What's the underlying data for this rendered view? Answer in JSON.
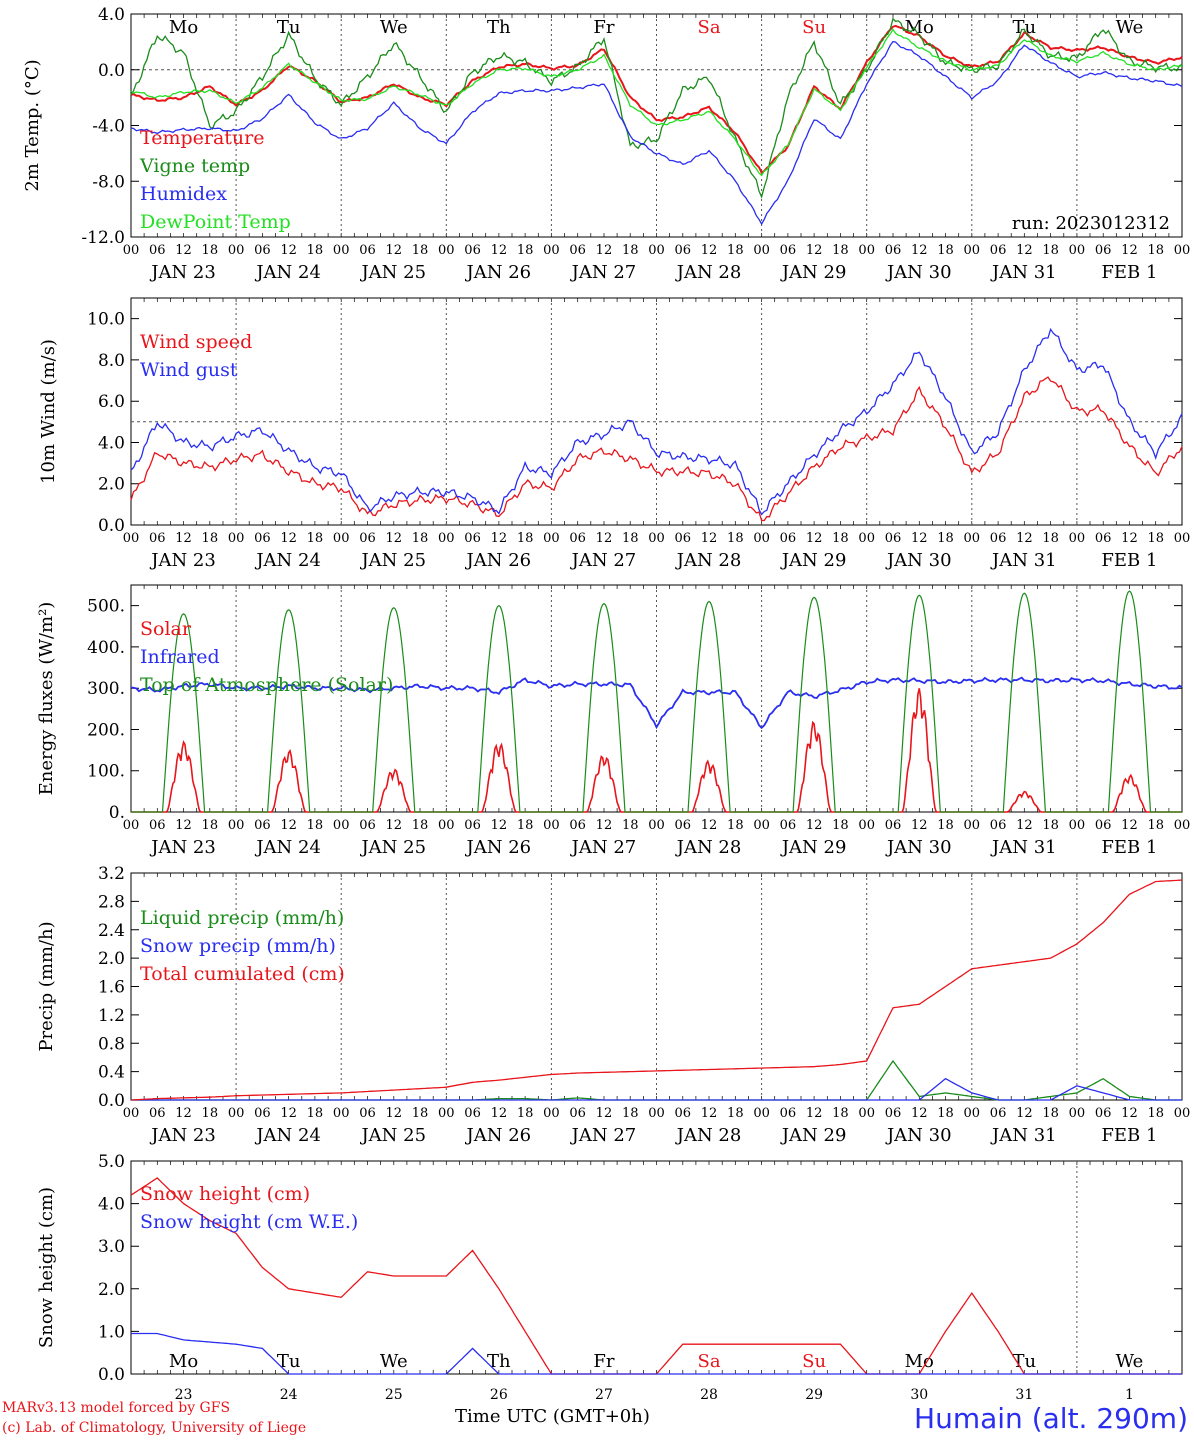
{
  "footer": {
    "model": "MARv3.13 model forced by GFS",
    "credit": "(c) Lab. of Climatology, University of Liege",
    "x_label": "Time UTC (GMT+0h)",
    "station": "Humain (alt. 290m)"
  },
  "colors": {
    "red": "#e8151b",
    "blue": "#2a2ef0",
    "green": "#1a8c1a",
    "lightgreen": "#22e022",
    "grid": "#555555"
  },
  "x_ticks": {
    "hour_labels": [
      "00",
      "06",
      "12",
      "18"
    ],
    "date_labels": [
      "JAN 23",
      "JAN 24",
      "JAN 25",
      "JAN 26",
      "JAN 27",
      "JAN 28",
      "JAN 29",
      "JAN 30",
      "JAN 31",
      "FEB  1"
    ]
  },
  "chart_data": [
    {
      "type": "line",
      "ylabel": "2m Temp. (°C)",
      "ylim": [
        -12,
        4
      ],
      "yticks": [
        "4.0",
        "0.0",
        "-4.0",
        "-8.0",
        "-12.0"
      ],
      "reference_line": 0,
      "day_labels": [
        {
          "text": "Mo",
          "color": "black"
        },
        {
          "text": "Tu",
          "color": "black"
        },
        {
          "text": "We",
          "color": "black"
        },
        {
          "text": "Th",
          "color": "black"
        },
        {
          "text": "Fr",
          "color": "black"
        },
        {
          "text": "Sa",
          "color": "red"
        },
        {
          "text": "Su",
          "color": "red"
        },
        {
          "text": "Mo",
          "color": "black"
        },
        {
          "text": "Tu",
          "color": "black"
        },
        {
          "text": "We",
          "color": "black"
        }
      ],
      "annotation": "run: 2023012312",
      "x_days": [
        0,
        0.25,
        0.5,
        0.75,
        1,
        1.25,
        1.5,
        1.75,
        2,
        2.25,
        2.5,
        2.75,
        3,
        3.25,
        3.5,
        3.75,
        4,
        4.25,
        4.5,
        4.75,
        5,
        5.25,
        5.5,
        5.75,
        6,
        6.25,
        6.5,
        6.75,
        7,
        7.25,
        7.5,
        7.75,
        8,
        8.25,
        8.5,
        8.75,
        9,
        9.25,
        9.5,
        9.75,
        10
      ],
      "series": [
        {
          "name": "Temperature",
          "color": "red",
          "values": [
            -1.8,
            -2.2,
            -2.0,
            -1.2,
            -2.5,
            -1.5,
            0.3,
            -0.8,
            -2.3,
            -2.0,
            -1.0,
            -2.0,
            -2.5,
            -0.8,
            0.2,
            0.4,
            0.1,
            0.3,
            1.5,
            -2.0,
            -3.6,
            -3.4,
            -2.7,
            -4.5,
            -7.4,
            -5.5,
            -1.2,
            -2.8,
            0.5,
            3.2,
            2.4,
            1.0,
            0.2,
            0.6,
            2.6,
            1.6,
            1.4,
            1.6,
            0.9,
            0.5,
            0.9
          ]
        },
        {
          "name": "Vigne temp",
          "color": "green",
          "values": [
            -2.0,
            2.5,
            1.2,
            -4.0,
            -3.0,
            -0.5,
            2.5,
            -0.6,
            -2.5,
            -0.5,
            1.9,
            -0.5,
            -3.0,
            -0.2,
            1.0,
            0.5,
            -0.8,
            0.2,
            2.3,
            -5.5,
            -5.0,
            -1.5,
            -0.5,
            -5.0,
            -9.0,
            -2.0,
            2.0,
            -2.5,
            0.0,
            3.5,
            2.5,
            0.5,
            0.0,
            0.3,
            2.8,
            1.0,
            0.8,
            3.0,
            0.6,
            0.2,
            0.1
          ]
        },
        {
          "name": "Humidex",
          "color": "blue",
          "values": [
            -4.2,
            -4.5,
            -4.3,
            -4.2,
            -4.4,
            -3.5,
            -1.8,
            -3.8,
            -5.0,
            -4.2,
            -2.4,
            -4.2,
            -5.3,
            -3.0,
            -1.7,
            -1.5,
            -1.5,
            -1.3,
            -1.0,
            -4.8,
            -6.0,
            -6.8,
            -5.8,
            -8.0,
            -11.0,
            -8.0,
            -3.5,
            -5.0,
            -1.0,
            2.0,
            1.0,
            -0.5,
            -2.0,
            -0.8,
            1.8,
            0.5,
            -0.5,
            -0.2,
            -0.6,
            -0.8,
            -1.2
          ]
        },
        {
          "name": "DewPoint Temp",
          "color": "lightgreen",
          "values": [
            -1.5,
            -2.0,
            -1.6,
            -1.5,
            -2.4,
            -1.3,
            0.4,
            -0.9,
            -2.2,
            -2.1,
            -1.2,
            -1.8,
            -2.6,
            -1.0,
            0.0,
            0.1,
            -0.5,
            0.0,
            1.0,
            -2.5,
            -4.0,
            -3.6,
            -3.0,
            -5.0,
            -7.6,
            -5.4,
            -1.4,
            -2.9,
            0.2,
            2.8,
            1.6,
            0.6,
            0.0,
            0.3,
            2.2,
            1.0,
            0.6,
            1.2,
            0.4,
            0.0,
            0.3
          ]
        }
      ]
    },
    {
      "type": "line",
      "ylabel": "10m Wind (m/s)",
      "ylim": [
        0,
        11
      ],
      "yticks": [
        "10.0",
        "8.0",
        "6.0",
        "4.0",
        "2.0",
        "0.0"
      ],
      "reference_line": 5,
      "x_days": [
        0,
        0.25,
        0.5,
        0.75,
        1,
        1.25,
        1.5,
        1.75,
        2,
        2.25,
        2.5,
        2.75,
        3,
        3.25,
        3.5,
        3.75,
        4,
        4.25,
        4.5,
        4.75,
        5,
        5.25,
        5.5,
        5.75,
        6,
        6.25,
        6.5,
        6.75,
        7,
        7.25,
        7.5,
        7.75,
        8,
        8.25,
        8.5,
        8.75,
        9,
        9.25,
        9.5,
        9.75,
        10
      ],
      "series": [
        {
          "name": "Wind speed",
          "color": "red",
          "values": [
            1.2,
            3.5,
            3.0,
            2.8,
            3.2,
            3.4,
            2.6,
            2.0,
            1.8,
            0.5,
            1.0,
            1.2,
            1.3,
            1.0,
            0.5,
            2.0,
            1.8,
            3.2,
            3.6,
            3.2,
            2.6,
            2.6,
            2.5,
            2.0,
            0.2,
            1.5,
            2.8,
            3.8,
            4.2,
            4.6,
            6.5,
            4.8,
            2.5,
            3.5,
            6.2,
            7.2,
            5.5,
            5.6,
            3.8,
            2.5,
            3.8
          ]
        },
        {
          "name": "Wind gust",
          "color": "blue",
          "values": [
            2.5,
            5.0,
            4.0,
            3.8,
            4.3,
            4.6,
            3.6,
            2.8,
            2.5,
            0.8,
            1.4,
            1.6,
            1.6,
            1.3,
            0.7,
            2.8,
            2.5,
            4.0,
            4.4,
            5.0,
            3.5,
            3.3,
            3.2,
            2.9,
            0.6,
            2.0,
            3.4,
            4.6,
            5.5,
            6.8,
            8.4,
            6.2,
            3.5,
            4.5,
            7.5,
            9.5,
            7.5,
            7.8,
            5.0,
            3.5,
            5.2
          ]
        }
      ]
    },
    {
      "type": "line",
      "ylabel": "Energy fluxes (W/m²)",
      "ylim": [
        0,
        550
      ],
      "yticks": [
        "500.",
        "400.",
        "300.",
        "200.",
        "100.",
        "0."
      ],
      "series": [
        {
          "name": "Solar",
          "color": "red",
          "peaks": [
            170,
            150,
            105,
            170,
            140,
            125,
            220,
            300,
            50,
            90
          ]
        },
        {
          "name": "Infrared",
          "color": "blue",
          "values": [
            300,
            295,
            305,
            310,
            300,
            300,
            305,
            300,
            300,
            295,
            300,
            305,
            300,
            300,
            290,
            320,
            305,
            310,
            310,
            308,
            210,
            290,
            290,
            290,
            205,
            290,
            280,
            295,
            315,
            320,
            318,
            315,
            318,
            320,
            320,
            318,
            320,
            318,
            310,
            305,
            300
          ]
        },
        {
          "name": "Top of Atmosphere (Solar)",
          "color": "green",
          "peaks": [
            480,
            490,
            495,
            500,
            505,
            510,
            520,
            525,
            530,
            535
          ]
        }
      ]
    },
    {
      "type": "line",
      "ylabel": "Precip (mm/h)",
      "ylim": [
        0,
        3.2
      ],
      "yticks": [
        "3.2",
        "2.8",
        "2.4",
        "2.0",
        "1.6",
        "1.2",
        "0.8",
        "0.4",
        "0.0"
      ],
      "x_days": [
        0,
        0.25,
        0.5,
        0.75,
        1,
        1.25,
        1.5,
        1.75,
        2,
        2.25,
        2.5,
        2.75,
        3,
        3.25,
        3.5,
        3.75,
        4,
        4.25,
        4.5,
        4.75,
        5,
        5.25,
        5.5,
        5.75,
        6,
        6.25,
        6.5,
        6.75,
        7,
        7.25,
        7.5,
        7.75,
        8,
        8.25,
        8.5,
        8.75,
        9,
        9.25,
        9.5,
        9.75,
        10
      ],
      "series": [
        {
          "name": "Liquid precip (mm/h)",
          "color": "green",
          "values": [
            0,
            0,
            0,
            0,
            0,
            0,
            0,
            0,
            0,
            0,
            0,
            0,
            0,
            0,
            0.02,
            0.02,
            0,
            0.03,
            0,
            0,
            0,
            0,
            0,
            0,
            0,
            0,
            0,
            0,
            0,
            0.55,
            0.05,
            0.1,
            0.05,
            0,
            0,
            0.05,
            0.1,
            0.3,
            0.05,
            0,
            0
          ]
        },
        {
          "name": "Snow precip (mm/h)",
          "color": "blue",
          "values": [
            0,
            0,
            0,
            0,
            0,
            0,
            0,
            0,
            0,
            0,
            0,
            0,
            0,
            0,
            0,
            0,
            0,
            0,
            0,
            0,
            0,
            0,
            0,
            0,
            0,
            0,
            0,
            0,
            0,
            0,
            0,
            0.3,
            0.1,
            0,
            0,
            0,
            0.2,
            0.1,
            0,
            0,
            0
          ]
        },
        {
          "name": "Total cumulated (cm)",
          "color": "red",
          "values": [
            0,
            0.02,
            0.03,
            0.04,
            0.06,
            0.07,
            0.08,
            0.09,
            0.1,
            0.12,
            0.14,
            0.16,
            0.18,
            0.25,
            0.28,
            0.32,
            0.36,
            0.38,
            0.39,
            0.4,
            0.41,
            0.42,
            0.43,
            0.44,
            0.45,
            0.46,
            0.47,
            0.5,
            0.55,
            1.3,
            1.35,
            1.6,
            1.85,
            1.9,
            1.95,
            2.0,
            2.2,
            2.5,
            2.9,
            3.08,
            3.1
          ]
        }
      ]
    },
    {
      "type": "line",
      "ylabel": "Snow height (cm)",
      "ylim": [
        0,
        5
      ],
      "yticks": [
        "5.0",
        "4.0",
        "3.0",
        "2.0",
        "1.0",
        "0.0"
      ],
      "x_ticks": [
        "23",
        "24",
        "25",
        "26",
        "27",
        "28",
        "29",
        "30",
        "31",
        "1"
      ],
      "day_labels": [
        {
          "text": "Mo",
          "color": "black"
        },
        {
          "text": "Tu",
          "color": "black"
        },
        {
          "text": "We",
          "color": "black"
        },
        {
          "text": "Th",
          "color": "black"
        },
        {
          "text": "Fr",
          "color": "black"
        },
        {
          "text": "Sa",
          "color": "red"
        },
        {
          "text": "Su",
          "color": "red"
        },
        {
          "text": "Mo",
          "color": "black"
        },
        {
          "text": "Tu",
          "color": "black"
        },
        {
          "text": "We",
          "color": "black"
        }
      ],
      "x_days": [
        0,
        0.25,
        0.5,
        0.75,
        1,
        1.25,
        1.5,
        1.75,
        2,
        2.25,
        2.5,
        2.75,
        3,
        3.25,
        3.5,
        3.75,
        4,
        4.25,
        4.5,
        4.75,
        5,
        5.25,
        5.5,
        5.75,
        6,
        6.25,
        6.5,
        6.75,
        7,
        7.25,
        7.5,
        7.75,
        8,
        8.25,
        8.5,
        8.75,
        9,
        9.25,
        9.5,
        9.75,
        10
      ],
      "series": [
        {
          "name": "Snow height (cm)",
          "color": "red",
          "values": [
            4.2,
            4.6,
            4.0,
            3.6,
            3.3,
            2.5,
            2.0,
            1.9,
            1.8,
            2.4,
            2.3,
            2.3,
            2.3,
            2.9,
            2.0,
            1.0,
            0,
            0,
            0,
            0,
            0,
            0.7,
            0.7,
            0.7,
            0.7,
            0.7,
            0.7,
            0.7,
            0,
            0,
            0,
            1.0,
            1.9,
            1.0,
            0,
            0,
            0,
            0,
            0,
            0,
            0
          ]
        },
        {
          "name": "Snow height (cm W.E.)",
          "color": "blue",
          "values": [
            0.95,
            0.95,
            0.8,
            0.75,
            0.7,
            0.6,
            0,
            0,
            0,
            0,
            0,
            0,
            0,
            0.6,
            0,
            0,
            0,
            0,
            0,
            0,
            0,
            0,
            0,
            0,
            0,
            0,
            0,
            0,
            0,
            0,
            0,
            0,
            0,
            0,
            0,
            0,
            0,
            0,
            0,
            0,
            0
          ]
        }
      ]
    }
  ]
}
